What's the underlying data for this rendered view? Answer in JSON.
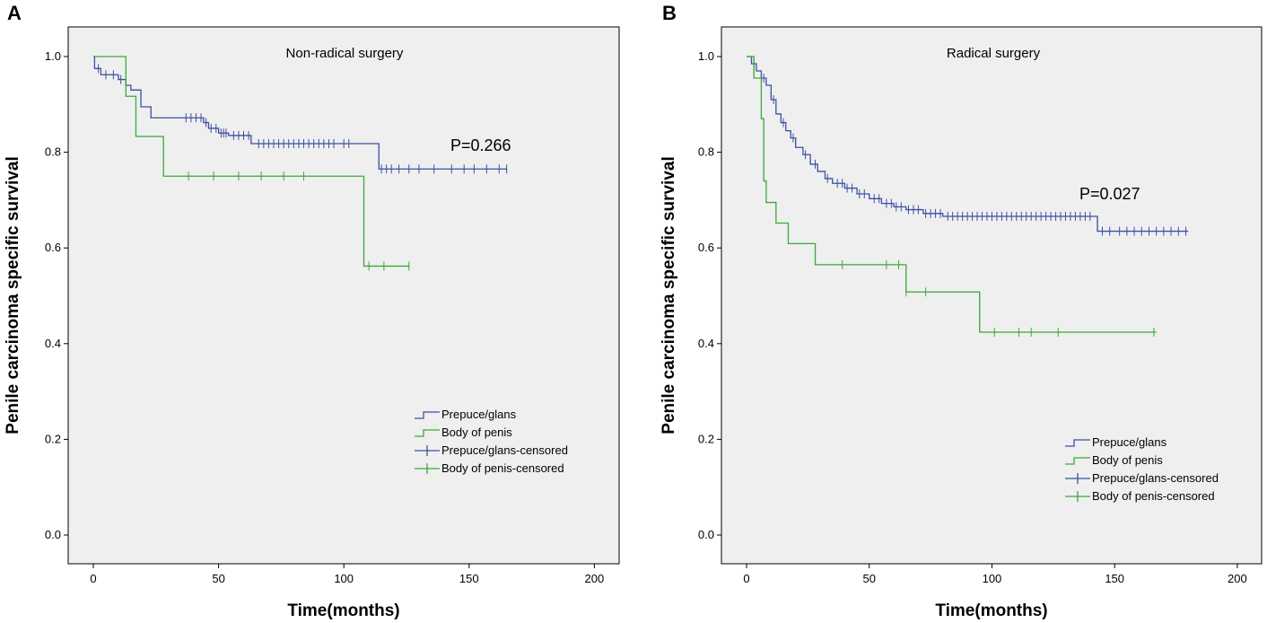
{
  "chart_data": [
    {
      "type": "line",
      "panel_label": "A",
      "title": "Non-radical surgery",
      "xlabel": "Time(months)",
      "ylabel": "Penile carcinoma specific survival",
      "xlim": [
        0,
        200
      ],
      "ylim": [
        0,
        1
      ],
      "x_ticks": [
        "0",
        "50",
        "100",
        "150",
        "200"
      ],
      "y_ticks": [
        "0.0",
        "0.2",
        "0.4",
        "0.6",
        "0.8",
        "1.0"
      ],
      "grid": false,
      "legend_position": "bottom-right",
      "annotation": "P=0.266",
      "series": [
        {
          "name": "Prepuce/glans",
          "color": "#3b4fa3",
          "steps": [
            [
              0,
              1.0
            ],
            [
              0.5,
              0.975
            ],
            [
              3,
              0.962
            ],
            [
              10,
              0.952
            ],
            [
              13,
              0.94
            ],
            [
              15,
              0.93
            ],
            [
              19,
              0.895
            ],
            [
              23,
              0.872
            ],
            [
              44,
              0.862
            ],
            [
              46,
              0.85
            ],
            [
              50,
              0.84
            ],
            [
              54,
              0.835
            ],
            [
              63,
              0.818
            ],
            [
              114,
              0.765
            ],
            [
              165,
              0.765
            ]
          ],
          "censored_x": [
            2,
            5,
            8,
            11,
            37,
            39,
            41,
            43,
            45,
            47,
            49,
            51,
            52,
            53,
            56,
            58,
            60,
            62,
            66,
            68,
            70,
            72,
            74,
            76,
            78,
            80,
            82,
            84,
            86,
            88,
            90,
            92,
            94,
            96,
            100,
            102,
            115,
            117,
            119,
            122,
            126,
            130,
            136,
            143,
            148,
            152,
            157,
            162,
            165
          ]
        },
        {
          "name": "Body of penis",
          "color": "#3aa83a",
          "steps": [
            [
              0,
              1.0
            ],
            [
              13,
              0.917
            ],
            [
              17,
              0.833
            ],
            [
              28,
              0.75
            ],
            [
              108,
              0.562
            ],
            [
              126,
              0.562
            ]
          ],
          "censored_x": [
            38,
            48,
            58,
            67,
            76,
            84,
            110,
            116,
            126
          ]
        }
      ],
      "legend": [
        "Prepuce/glans",
        "Body of penis",
        "Prepuce/glans-censored",
        "Body of penis-censored"
      ]
    },
    {
      "type": "line",
      "panel_label": "B",
      "title": "Radical surgery",
      "xlabel": "Time(months)",
      "ylabel": "Penile carcinoma specific survival",
      "xlim": [
        0,
        200
      ],
      "ylim": [
        0,
        1
      ],
      "x_ticks": [
        "0",
        "50",
        "100",
        "150",
        "200"
      ],
      "y_ticks": [
        "0.0",
        "0.2",
        "0.4",
        "0.6",
        "0.8",
        "1.0"
      ],
      "grid": false,
      "legend_position": "bottom-right",
      "annotation": "P=0.027",
      "series": [
        {
          "name": "Prepuce/glans",
          "color": "#3b4fa3",
          "steps": [
            [
              0,
              1.0
            ],
            [
              2,
              0.985
            ],
            [
              4,
              0.97
            ],
            [
              6,
              0.955
            ],
            [
              8,
              0.94
            ],
            [
              10,
              0.91
            ],
            [
              12,
              0.88
            ],
            [
              14,
              0.862
            ],
            [
              16,
              0.845
            ],
            [
              18,
              0.83
            ],
            [
              20,
              0.81
            ],
            [
              23,
              0.795
            ],
            [
              26,
              0.775
            ],
            [
              29,
              0.76
            ],
            [
              32,
              0.745
            ],
            [
              35,
              0.735
            ],
            [
              40,
              0.725
            ],
            [
              45,
              0.713
            ],
            [
              50,
              0.703
            ],
            [
              55,
              0.693
            ],
            [
              60,
              0.686
            ],
            [
              65,
              0.68
            ],
            [
              72,
              0.672
            ],
            [
              80,
              0.666
            ],
            [
              143,
              0.635
            ],
            [
              180,
              0.635
            ]
          ],
          "censored_x": [
            3,
            7,
            11,
            15,
            19,
            24,
            28,
            33,
            37,
            39,
            41,
            43,
            46,
            48,
            52,
            54,
            57,
            59,
            61,
            63,
            66,
            68,
            70,
            73,
            75,
            77,
            79,
            82,
            84,
            86,
            88,
            90,
            92,
            94,
            96,
            98,
            100,
            102,
            104,
            106,
            108,
            110,
            112,
            114,
            116,
            118,
            120,
            122,
            124,
            126,
            128,
            130,
            132,
            134,
            136,
            138,
            140,
            145,
            148,
            152,
            155,
            158,
            161,
            164,
            167,
            170,
            173,
            176,
            179
          ]
        },
        {
          "name": "Body of penis",
          "color": "#3aa83a",
          "steps": [
            [
              0,
              1.0
            ],
            [
              3,
              0.955
            ],
            [
              6,
              0.87
            ],
            [
              7,
              0.74
            ],
            [
              8,
              0.695
            ],
            [
              12,
              0.652
            ],
            [
              17,
              0.609
            ],
            [
              28,
              0.565
            ],
            [
              65,
              0.508
            ],
            [
              95,
              0.424
            ],
            [
              167,
              0.424
            ]
          ],
          "censored_x": [
            39,
            57,
            62,
            65,
            73,
            101,
            111,
            116,
            127,
            166
          ]
        }
      ],
      "legend": [
        "Prepuce/glans",
        "Body of penis",
        "Prepuce/glans-censored",
        "Body of penis-censored"
      ]
    }
  ]
}
